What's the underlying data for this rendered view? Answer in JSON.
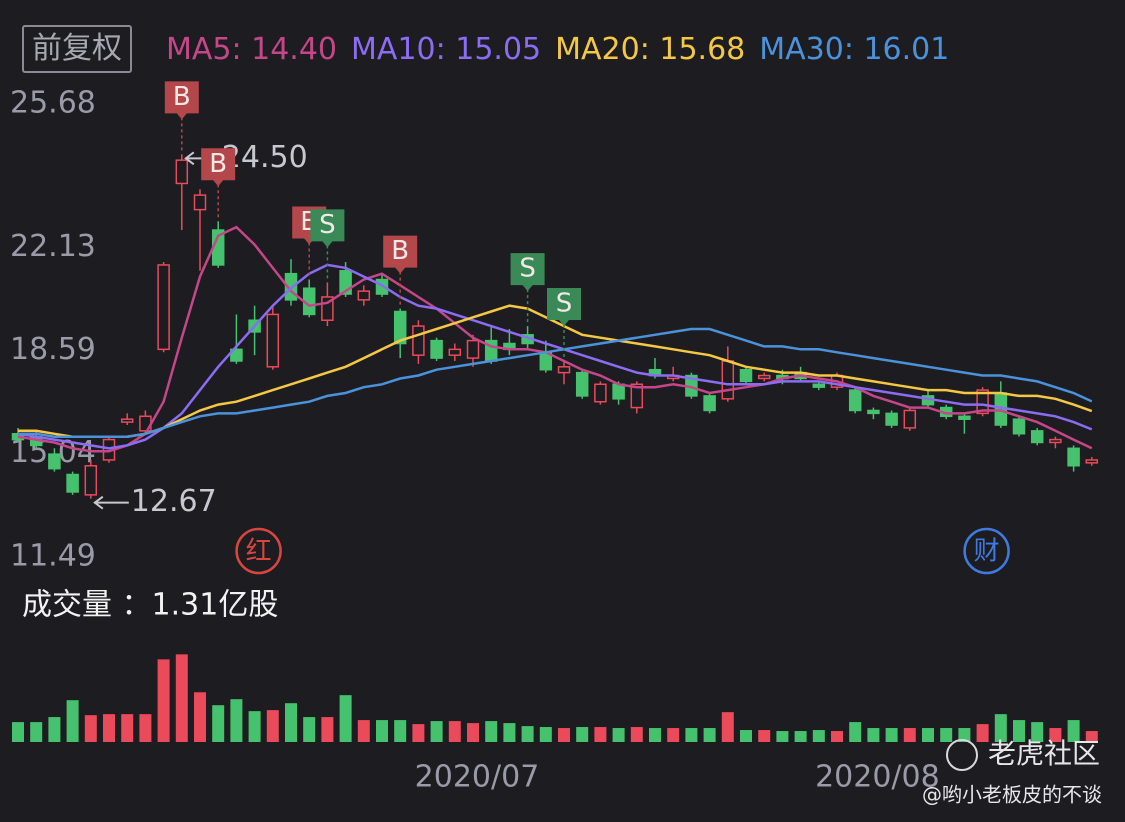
{
  "chart_data": {
    "type": "candlestick",
    "adjust_label": "前复权",
    "categories": [
      null,
      null,
      null,
      null,
      null,
      null,
      null,
      null,
      null,
      null,
      null,
      null,
      null,
      null,
      null,
      null,
      null,
      null,
      null,
      null,
      null,
      null,
      null,
      null,
      null,
      "2020/07",
      null,
      null,
      null,
      null,
      null,
      null,
      null,
      null,
      null,
      null,
      null,
      null,
      null,
      null,
      null,
      null,
      null,
      null,
      null,
      null,
      null,
      "2020/08",
      null,
      null,
      null,
      null,
      null,
      null,
      null,
      null,
      null,
      null,
      null,
      null
    ],
    "open": [
      14.9,
      14.8,
      14.2,
      13.5,
      12.8,
      14.0,
      15.3,
      15.0,
      17.8,
      23.5,
      22.6,
      21.9,
      17.8,
      18.8,
      17.2,
      20.4,
      19.9,
      18.8,
      20.5,
      19.5,
      20.2,
      19.1,
      17.6,
      18.1,
      17.6,
      17.5,
      18.1,
      18.0,
      18.3,
      17.7,
      17.0,
      17.0,
      16.0,
      16.6,
      15.8,
      17.1,
      16.8,
      16.9,
      16.2,
      16.1,
      17.1,
      16.8,
      16.9,
      17.0,
      16.6,
      16.5,
      16.4,
      15.7,
      15.6,
      15.1,
      16.2,
      15.8,
      15.5,
      15.6,
      16.3,
      15.4,
      15.0,
      14.6,
      14.4,
      13.9
    ],
    "high": [
      15.1,
      15.0,
      14.4,
      13.6,
      14.0,
      14.8,
      15.6,
      15.7,
      20.8,
      24.5,
      23.3,
      22.2,
      19.0,
      19.3,
      19.3,
      20.9,
      20.2,
      20.1,
      20.8,
      20.0,
      20.4,
      19.2,
      18.8,
      18.2,
      18.0,
      18.3,
      18.6,
      18.5,
      18.6,
      18.1,
      17.4,
      17.1,
      16.7,
      16.7,
      16.7,
      17.5,
      17.2,
      17.0,
      16.3,
      17.9,
      17.2,
      17.0,
      17.1,
      17.2,
      16.7,
      17.0,
      16.5,
      15.8,
      15.7,
      15.8,
      16.4,
      15.9,
      15.6,
      16.5,
      16.7,
      15.5,
      15.1,
      14.8,
      14.5,
      14.1
    ],
    "low": [
      14.6,
      14.4,
      13.6,
      12.8,
      12.67,
      13.9,
      15.2,
      14.9,
      17.7,
      21.9,
      20.5,
      20.6,
      17.3,
      17.6,
      17.1,
      19.3,
      18.9,
      18.6,
      19.6,
      19.3,
      19.6,
      17.5,
      17.3,
      17.4,
      17.4,
      17.2,
      17.3,
      17.6,
      17.8,
      17.0,
      16.6,
      16.1,
      15.9,
      15.9,
      15.6,
      16.8,
      16.7,
      16.1,
      15.6,
      16.0,
      16.6,
      16.7,
      16.6,
      16.7,
      16.4,
      16.4,
      15.6,
      15.4,
      15.1,
      15.0,
      15.8,
      15.4,
      14.9,
      15.5,
      15.1,
      14.8,
      14.5,
      14.4,
      13.6,
      13.8
    ],
    "close": [
      14.7,
      14.5,
      13.7,
      12.9,
      13.8,
      14.7,
      15.4,
      15.5,
      20.7,
      24.3,
      23.1,
      20.7,
      17.4,
      18.4,
      19.0,
      19.5,
      19.0,
      19.6,
      19.7,
      19.8,
      19.7,
      18.0,
      18.6,
      17.5,
      17.8,
      18.1,
      17.4,
      17.8,
      18.0,
      17.1,
      17.2,
      16.2,
      16.6,
      16.1,
      16.6,
      16.9,
      16.9,
      16.2,
      15.7,
      17.4,
      16.7,
      16.9,
      16.8,
      16.8,
      16.5,
      16.9,
      15.7,
      15.6,
      15.2,
      15.7,
      15.9,
      15.5,
      15.4,
      16.4,
      15.2,
      14.9,
      14.6,
      14.7,
      13.8,
      14.0
    ],
    "ylim": [
      11.49,
      25.68
    ],
    "yticks": [
      25.68,
      22.13,
      18.59,
      15.04,
      11.49
    ],
    "up_color": "#ea4a5a",
    "down_color": "#46c26e",
    "series": [
      {
        "label": "MA5: 14.40",
        "color": "#c6468a",
        "values": [
          14.8,
          14.7,
          14.6,
          14.4,
          14.3,
          14.3,
          14.5,
          14.9,
          16.0,
          18.2,
          20.3,
          21.7,
          22.0,
          21.4,
          20.6,
          19.8,
          19.3,
          19.4,
          19.8,
          20.2,
          20.4,
          20.0,
          19.6,
          19.2,
          18.7,
          18.2,
          17.9,
          17.8,
          17.8,
          17.7,
          17.4,
          17.1,
          16.9,
          16.6,
          16.5,
          16.5,
          16.6,
          16.5,
          16.3,
          16.4,
          16.5,
          16.6,
          16.8,
          16.9,
          16.8,
          16.7,
          16.5,
          16.2,
          16.0,
          15.8,
          15.8,
          15.6,
          15.6,
          15.7,
          15.7,
          15.5,
          15.3,
          15.0,
          14.7,
          14.4
        ]
      },
      {
        "label": "MA10: 15.05",
        "color": "#8b6cf2",
        "values": [
          14.9,
          14.8,
          14.7,
          14.6,
          14.5,
          14.4,
          14.5,
          14.7,
          15.1,
          15.6,
          16.4,
          17.2,
          17.9,
          18.6,
          19.3,
          19.9,
          20.4,
          20.7,
          20.6,
          20.3,
          20.0,
          19.6,
          19.3,
          19.2,
          19.0,
          18.8,
          18.6,
          18.4,
          18.2,
          18.0,
          17.8,
          17.6,
          17.4,
          17.2,
          17.0,
          16.9,
          16.9,
          16.8,
          16.7,
          16.6,
          16.6,
          16.6,
          16.7,
          16.7,
          16.7,
          16.6,
          16.5,
          16.4,
          16.3,
          16.2,
          16.1,
          16.0,
          15.9,
          15.9,
          15.8,
          15.7,
          15.6,
          15.5,
          15.3,
          15.05
        ]
      },
      {
        "label": "MA20: 15.68",
        "color": "#f5c844",
        "values": [
          15.0,
          15.0,
          14.9,
          14.8,
          14.8,
          14.8,
          14.8,
          14.9,
          15.1,
          15.4,
          15.7,
          15.9,
          16.0,
          16.2,
          16.4,
          16.6,
          16.8,
          17.0,
          17.2,
          17.5,
          17.8,
          18.1,
          18.3,
          18.5,
          18.7,
          18.9,
          19.1,
          19.3,
          19.2,
          18.9,
          18.6,
          18.3,
          18.2,
          18.1,
          18.0,
          17.9,
          17.8,
          17.7,
          17.6,
          17.4,
          17.2,
          17.1,
          17.0,
          17.0,
          16.9,
          16.9,
          16.8,
          16.7,
          16.6,
          16.5,
          16.4,
          16.4,
          16.3,
          16.3,
          16.3,
          16.2,
          16.2,
          16.1,
          15.9,
          15.68
        ]
      },
      {
        "label": "MA30: 16.01",
        "color": "#4b92da",
        "values": [
          14.9,
          14.9,
          14.8,
          14.8,
          14.8,
          14.8,
          14.8,
          14.9,
          15.1,
          15.3,
          15.5,
          15.6,
          15.6,
          15.7,
          15.8,
          15.9,
          16.0,
          16.2,
          16.3,
          16.5,
          16.6,
          16.8,
          16.9,
          17.1,
          17.2,
          17.3,
          17.4,
          17.5,
          17.6,
          17.7,
          17.8,
          17.9,
          18.0,
          18.1,
          18.2,
          18.3,
          18.4,
          18.5,
          18.5,
          18.3,
          18.1,
          17.9,
          17.9,
          17.8,
          17.8,
          17.7,
          17.6,
          17.5,
          17.4,
          17.3,
          17.2,
          17.1,
          17.0,
          16.9,
          16.9,
          16.8,
          16.7,
          16.5,
          16.3,
          16.01
        ]
      }
    ],
    "annotations": [
      {
        "index": 9,
        "text": "24.50"
      },
      {
        "index": 4,
        "text": "12.67"
      }
    ],
    "signals": [
      {
        "index": 9,
        "label": "B",
        "color": "#b4474a"
      },
      {
        "index": 11,
        "label": "B",
        "color": "#b4474a"
      },
      {
        "index": 16,
        "label": "B",
        "color": "#b4474a"
      },
      {
        "index": 17,
        "label": "S",
        "color": "#3a8a58"
      },
      {
        "index": 21,
        "label": "B",
        "color": "#b4474a"
      },
      {
        "index": 28,
        "label": "S",
        "color": "#3a8a58"
      },
      {
        "index": 30,
        "label": "S",
        "color": "#3a8a58"
      }
    ],
    "events": [
      {
        "index": 13,
        "label": "红",
        "color": "#d9453f"
      },
      {
        "index": 53,
        "label": "财",
        "color": "#3f7ae0"
      }
    ],
    "volume": {
      "title": "成交量 ：1.31亿股",
      "ylim": [
        0,
        11
      ],
      "values": [
        2.38,
        2.38,
        2.98,
        5.0,
        3.21,
        3.33,
        3.33,
        3.33,
        9.88,
        10.48,
        5.95,
        4.4,
        5.12,
        3.69,
        3.81,
        4.64,
        2.98,
        2.98,
        5.6,
        2.62,
        2.62,
        2.62,
        2.14,
        2.5,
        2.5,
        2.26,
        2.5,
        2.26,
        1.9,
        1.79,
        1.67,
        1.79,
        1.79,
        1.67,
        1.79,
        1.67,
        1.67,
        1.67,
        1.67,
        3.57,
        1.43,
        1.43,
        1.31,
        1.31,
        1.43,
        1.31,
        2.38,
        1.67,
        1.67,
        1.67,
        1.67,
        1.67,
        1.67,
        2.14,
        3.33,
        2.62,
        2.38,
        1.67,
        2.62,
        1.31
      ]
    },
    "watermark": {
      "brand": "老虎社区",
      "author": "@哟小老板皮的不谈"
    }
  }
}
